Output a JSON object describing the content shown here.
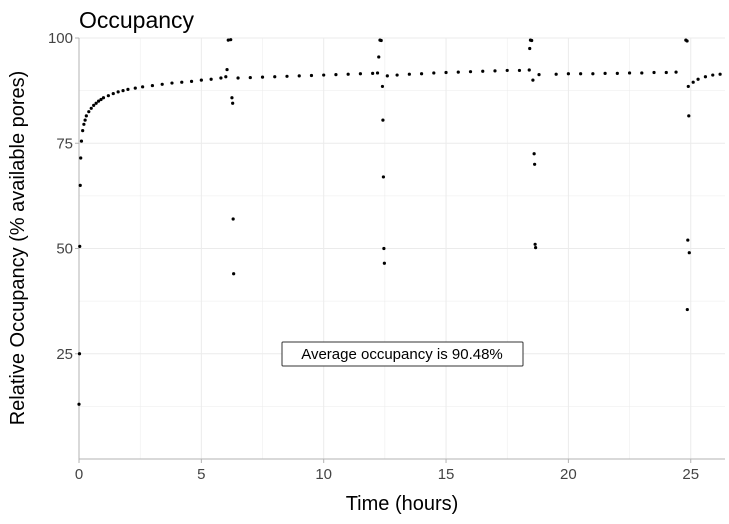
{
  "chart_data": {
    "type": "scatter",
    "title": "Occupancy",
    "xlabel": "Time (hours)",
    "ylabel": "Relative Occupancy (% available pores)",
    "xlim": [
      0,
      26.4
    ],
    "ylim": [
      0,
      100
    ],
    "x_ticks": [
      0,
      5,
      10,
      15,
      20,
      25
    ],
    "y_ticks": [
      25,
      50,
      75,
      100
    ],
    "grid": true,
    "point_color": "#000000",
    "annotation": "Average occupancy is 90.48%",
    "series": [
      {
        "points": [
          [
            0.0,
            13
          ],
          [
            0.02,
            25
          ],
          [
            0.03,
            50.5
          ],
          [
            0.05,
            65
          ],
          [
            0.07,
            71.5
          ],
          [
            0.1,
            75.5
          ],
          [
            0.15,
            78
          ],
          [
            0.2,
            79.5
          ],
          [
            0.25,
            80.5
          ],
          [
            0.3,
            81.5
          ],
          [
            0.4,
            82.5
          ],
          [
            0.5,
            83.3
          ],
          [
            0.6,
            84
          ],
          [
            0.7,
            84.5
          ],
          [
            0.8,
            85
          ],
          [
            0.9,
            85.4
          ],
          [
            1.0,
            85.8
          ],
          [
            1.2,
            86.3
          ],
          [
            1.4,
            86.8
          ],
          [
            1.6,
            87.2
          ],
          [
            1.8,
            87.5
          ],
          [
            2.0,
            87.8
          ],
          [
            2.3,
            88.1
          ],
          [
            2.6,
            88.4
          ],
          [
            3.0,
            88.7
          ],
          [
            3.4,
            89.0
          ],
          [
            3.8,
            89.3
          ],
          [
            4.2,
            89.5
          ],
          [
            4.6,
            89.7
          ],
          [
            5.0,
            90.0
          ],
          [
            5.4,
            90.2
          ],
          [
            5.8,
            90.5
          ],
          [
            6.0,
            90.8
          ],
          [
            6.05,
            92.5
          ],
          [
            6.1,
            99.5
          ],
          [
            6.2,
            99.6
          ],
          [
            6.25,
            85.8
          ],
          [
            6.28,
            84.5
          ],
          [
            6.3,
            57
          ],
          [
            6.32,
            44
          ],
          [
            6.5,
            90.5
          ],
          [
            7.0,
            90.6
          ],
          [
            7.5,
            90.7
          ],
          [
            8.0,
            90.8
          ],
          [
            8.5,
            90.9
          ],
          [
            9.0,
            91.0
          ],
          [
            9.5,
            91.1
          ],
          [
            10.0,
            91.2
          ],
          [
            10.5,
            91.3
          ],
          [
            11.0,
            91.4
          ],
          [
            11.5,
            91.5
          ],
          [
            12.0,
            91.6
          ],
          [
            12.2,
            91.7
          ],
          [
            12.3,
            99.5
          ],
          [
            12.35,
            99.4
          ],
          [
            12.25,
            95.5
          ],
          [
            12.4,
            88.5
          ],
          [
            12.42,
            80.5
          ],
          [
            12.44,
            67
          ],
          [
            12.46,
            50
          ],
          [
            12.48,
            46.5
          ],
          [
            12.6,
            91.0
          ],
          [
            13.0,
            91.2
          ],
          [
            13.5,
            91.4
          ],
          [
            14.0,
            91.5
          ],
          [
            14.5,
            91.7
          ],
          [
            15.0,
            91.8
          ],
          [
            15.5,
            91.9
          ],
          [
            16.0,
            92.0
          ],
          [
            16.5,
            92.1
          ],
          [
            17.0,
            92.2
          ],
          [
            17.5,
            92.3
          ],
          [
            18.0,
            92.3
          ],
          [
            18.4,
            92.4
          ],
          [
            18.45,
            99.5
          ],
          [
            18.5,
            99.4
          ],
          [
            18.42,
            97.5
          ],
          [
            18.55,
            90.0
          ],
          [
            18.6,
            72.5
          ],
          [
            18.62,
            70
          ],
          [
            18.64,
            51
          ],
          [
            18.66,
            50.2
          ],
          [
            18.8,
            91.3
          ],
          [
            19.5,
            91.4
          ],
          [
            20.0,
            91.5
          ],
          [
            20.5,
            91.5
          ],
          [
            21.0,
            91.5
          ],
          [
            21.5,
            91.6
          ],
          [
            22.0,
            91.6
          ],
          [
            22.5,
            91.7
          ],
          [
            23.0,
            91.7
          ],
          [
            23.5,
            91.8
          ],
          [
            24.0,
            91.8
          ],
          [
            24.4,
            91.9
          ],
          [
            24.8,
            99.5
          ],
          [
            24.85,
            99.3
          ],
          [
            24.9,
            88.5
          ],
          [
            24.92,
            81.5
          ],
          [
            24.88,
            52
          ],
          [
            24.94,
            49
          ],
          [
            24.86,
            35.5
          ],
          [
            25.1,
            89.5
          ],
          [
            25.3,
            90.2
          ],
          [
            25.6,
            90.8
          ],
          [
            25.9,
            91.2
          ],
          [
            26.2,
            91.4
          ]
        ]
      }
    ]
  }
}
